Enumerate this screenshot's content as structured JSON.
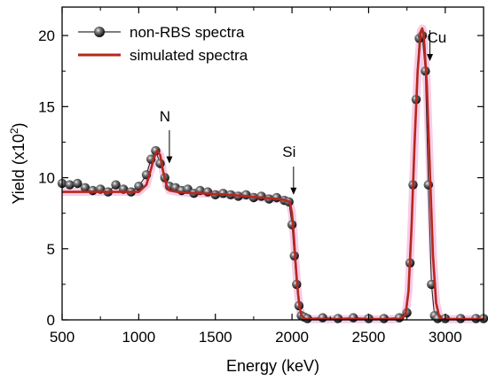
{
  "chart_data": {
    "type": "line",
    "xlabel": "Energy (keV)",
    "ylabel_main": "Yield (x10",
    "ylabel_sup": "2",
    "ylabel_close": ")",
    "xlim": [
      500,
      3250
    ],
    "ylim": [
      0,
      22
    ],
    "xticks": [
      500,
      1000,
      1500,
      2000,
      2500,
      3000
    ],
    "yticks": [
      0,
      5,
      10,
      15,
      20
    ],
    "legend": {
      "position": "top-left",
      "entries": [
        "non-RBS spectra",
        "simulated spectra"
      ]
    },
    "annotations": [
      {
        "text": "N",
        "x": 1200,
        "y": 11
      },
      {
        "text": "Si",
        "x": 2010,
        "y": 8.8
      },
      {
        "text": "Cu",
        "x": 2900,
        "y": 18.2
      }
    ],
    "colors": {
      "simulated": "#b5281e",
      "halo": "#ee8ec9",
      "marker": "#111111"
    },
    "series": [
      {
        "name": "non-RBS spectra",
        "style": "black sphere markers",
        "x": [
          500,
          550,
          600,
          650,
          700,
          750,
          800,
          850,
          900,
          950,
          1000,
          1050,
          1080,
          1110,
          1140,
          1170,
          1200,
          1240,
          1280,
          1320,
          1360,
          1400,
          1450,
          1500,
          1550,
          1600,
          1650,
          1700,
          1750,
          1800,
          1850,
          1900,
          1950,
          1980,
          2000,
          2015,
          2030,
          2045,
          2060,
          2080,
          2100,
          2200,
          2300,
          2400,
          2500,
          2600,
          2700,
          2750,
          2770,
          2790,
          2810,
          2830,
          2850,
          2870,
          2890,
          2910,
          2930,
          2950,
          3000,
          3100,
          3200,
          3250
        ],
        "y": [
          9.6,
          9.5,
          9.6,
          9.3,
          9.1,
          9.2,
          9.0,
          9.5,
          9.2,
          9.0,
          9.4,
          10.2,
          11.3,
          11.9,
          11.0,
          10.0,
          9.4,
          9.3,
          9.1,
          9.2,
          8.9,
          9.1,
          9.0,
          8.8,
          8.9,
          8.8,
          8.7,
          8.8,
          8.6,
          8.7,
          8.5,
          8.6,
          8.4,
          8.3,
          6.7,
          4.5,
          2.5,
          1.0,
          0.3,
          0.2,
          0.1,
          0.15,
          0.1,
          0.15,
          0.1,
          0.1,
          0.15,
          0.5,
          4.0,
          9.5,
          15.5,
          19.8,
          20.0,
          17.5,
          9.5,
          2.5,
          0.3,
          0.1,
          0.1,
          0.1,
          0.1,
          0.1
        ]
      },
      {
        "name": "simulated spectra",
        "style": "red line",
        "x": [
          500,
          600,
          700,
          800,
          900,
          1000,
          1050,
          1080,
          1100,
          1120,
          1140,
          1160,
          1180,
          1200,
          1250,
          1300,
          1400,
          1500,
          1600,
          1700,
          1800,
          1900,
          1950,
          1985,
          2000,
          2010,
          2020,
          2030,
          2040,
          2050,
          2060,
          2080,
          2100,
          2200,
          2400,
          2600,
          2700,
          2740,
          2760,
          2780,
          2800,
          2820,
          2840,
          2850,
          2860,
          2880,
          2900,
          2920,
          2940,
          2960,
          2980,
          3000,
          3100,
          3250
        ],
        "y": [
          9.0,
          9.0,
          9.0,
          9.0,
          9.0,
          9.0,
          9.5,
          10.6,
          11.4,
          11.9,
          11.6,
          10.4,
          9.5,
          9.1,
          9.0,
          8.95,
          8.9,
          8.85,
          8.8,
          8.7,
          8.6,
          8.5,
          8.45,
          8.3,
          7.5,
          6.2,
          4.6,
          3.0,
          1.8,
          0.9,
          0.35,
          0.1,
          0.05,
          0.05,
          0.05,
          0.05,
          0.05,
          0.3,
          2.0,
          6.5,
          12.5,
          17.5,
          20.3,
          20.5,
          20.0,
          16.5,
          10.5,
          4.5,
          1.2,
          0.25,
          0.05,
          0.05,
          0.05,
          0.05
        ]
      }
    ]
  }
}
